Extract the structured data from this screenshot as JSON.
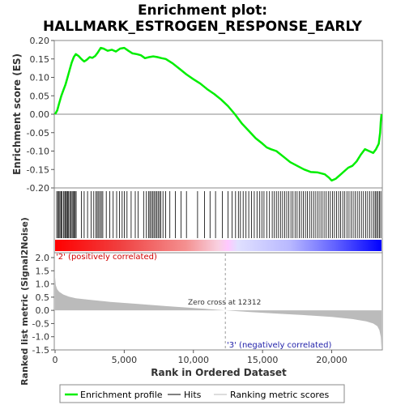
{
  "chart_data": {
    "type": "line",
    "title": "Enrichment plot:",
    "subtitle": "HALLMARK_ESTROGEN_RESPONSE_EARLY",
    "n_genes": 23600,
    "panels": {
      "enrichment": {
        "ylabel": "Enrichment score (ES)",
        "ylim": [
          -0.2,
          0.2
        ],
        "yticks": [
          0.2,
          0.15,
          0.1,
          0.05,
          0.0,
          -0.05,
          -0.1,
          -0.15,
          -0.2
        ],
        "ytick_labels": [
          "0.20",
          "0.15",
          "0.10",
          "0.05",
          "0.00",
          "-0.05",
          "-0.10",
          "-0.15",
          "-0.20"
        ],
        "series": [
          {
            "color": "#00ee00",
            "x": [
              0,
              150,
              300,
              450,
              600,
              750,
              900,
              1050,
              1200,
              1350,
              1500,
              1700,
              1900,
              2100,
              2300,
              2500,
              2700,
              2900,
              3100,
              3300,
              3500,
              3800,
              4100,
              4400,
              4700,
              5000,
              5300,
              5600,
              5900,
              6200,
              6500,
              6800,
              7100,
              7400,
              7700,
              8000,
              8500,
              9000,
              9500,
              10000,
              10500,
              11000,
              11500,
              12000,
              12500,
              13000,
              13500,
              14000,
              14500,
              15000,
              15300,
              15600,
              16000,
              16500,
              17000,
              17500,
              18000,
              18500,
              19000,
              19500,
              19800,
              20000,
              20300,
              20600,
              20900,
              21200,
              21500,
              21800,
              22100,
              22400,
              22700,
              23000,
              23200,
              23400,
              23500,
              23550,
              23600
            ],
            "y": [
              0.0,
              0.01,
              0.03,
              0.05,
              0.065,
              0.08,
              0.1,
              0.12,
              0.14,
              0.155,
              0.163,
              0.158,
              0.15,
              0.143,
              0.148,
              0.155,
              0.153,
              0.158,
              0.168,
              0.18,
              0.178,
              0.172,
              0.175,
              0.17,
              0.178,
              0.18,
              0.172,
              0.165,
              0.163,
              0.16,
              0.152,
              0.155,
              0.157,
              0.155,
              0.152,
              0.15,
              0.138,
              0.123,
              0.108,
              0.095,
              0.083,
              0.068,
              0.055,
              0.04,
              0.022,
              0.0,
              -0.025,
              -0.045,
              -0.065,
              -0.08,
              -0.09,
              -0.095,
              -0.1,
              -0.115,
              -0.13,
              -0.14,
              -0.15,
              -0.157,
              -0.158,
              -0.163,
              -0.172,
              -0.18,
              -0.175,
              -0.165,
              -0.155,
              -0.145,
              -0.14,
              -0.128,
              -0.11,
              -0.095,
              -0.1,
              -0.105,
              -0.095,
              -0.08,
              -0.05,
              -0.02,
              0.0
            ]
          }
        ]
      },
      "hits": {
        "positions": [
          120,
          200,
          280,
          350,
          430,
          500,
          620,
          700,
          760,
          830,
          900,
          980,
          1060,
          1150,
          1230,
          1300,
          1380,
          1450,
          1520,
          1900,
          2100,
          2350,
          2600,
          2800,
          2950,
          3050,
          3150,
          3250,
          3350,
          3450,
          3700,
          3950,
          4200,
          4450,
          4650,
          4850,
          5000,
          5200,
          5500,
          5800,
          6000,
          6400,
          6600,
          6750,
          6850,
          6950,
          7050,
          7150,
          7250,
          7350,
          7450,
          7550,
          7650,
          7800,
          8000,
          8300,
          8700,
          9100,
          9500,
          10300,
          10800,
          11200,
          11600,
          12100,
          12500,
          12800,
          13050,
          13250,
          13400,
          13600,
          13800,
          14000,
          14200,
          14400,
          14600,
          14800,
          14950,
          15100,
          15300,
          15500,
          15700,
          15850,
          16000,
          16150,
          16300,
          16450,
          16600,
          16750,
          16900,
          17050,
          17200,
          17350,
          17500,
          17650,
          17800,
          17950,
          18100,
          18250,
          18400,
          18550,
          18700,
          18850,
          19000,
          19150,
          19300,
          19450,
          19600,
          19750,
          19900,
          20050,
          20200,
          20350,
          20500,
          20650,
          20800,
          20950,
          21100,
          21250,
          21400,
          21550,
          21700,
          21850,
          22000,
          22150,
          22300,
          22450,
          22600,
          22750,
          22900,
          23050,
          23150,
          23250,
          23350,
          23450,
          23550
        ]
      },
      "ranked_metric": {
        "ylabel": "Ranked list metric (Signal2Noise)",
        "ylim": [
          -1.5,
          2.0
        ],
        "yticks": [
          2.0,
          1.5,
          1.0,
          0.5,
          0.0,
          -0.5,
          -1.0,
          -1.5
        ],
        "ytick_labels": [
          "2.0",
          "1.5",
          "1.0",
          "0.5",
          "0.0",
          "-0.5",
          "-1.0",
          "-1.5"
        ],
        "x": [
          0,
          50,
          150,
          300,
          600,
          1000,
          1500,
          2500,
          4000,
          6000,
          8000,
          10000,
          12312,
          14000,
          16000,
          18000,
          20000,
          21500,
          22500,
          23000,
          23300,
          23450,
          23550,
          23600
        ],
        "y": [
          1.25,
          0.95,
          0.8,
          0.7,
          0.6,
          0.52,
          0.46,
          0.4,
          0.32,
          0.24,
          0.16,
          0.09,
          0.0,
          -0.06,
          -0.12,
          -0.18,
          -0.25,
          -0.33,
          -0.42,
          -0.5,
          -0.6,
          -0.75,
          -1.0,
          -1.45
        ]
      }
    },
    "xlabel": "Rank in Ordered Dataset",
    "xlim": [
      0,
      23600
    ],
    "xticks": [
      0,
      5000,
      10000,
      15000,
      20000
    ],
    "xtick_labels": [
      "0",
      "5,000",
      "10,000",
      "15,000",
      "20,000"
    ],
    "annotations": {
      "positive": "'2' (positively correlated)",
      "negative": "'3' (negatively correlated)",
      "zero_cross": "Zero cross at 12312",
      "zero_cross_x": 12312
    },
    "legend": {
      "placement": "bottom",
      "items": [
        {
          "label": "Enrichment profile",
          "color": "#00ee00"
        },
        {
          "label": "Hits",
          "color": "#000000"
        },
        {
          "label": "Ranking metric scores",
          "color": "#bbbbbb"
        }
      ]
    }
  }
}
